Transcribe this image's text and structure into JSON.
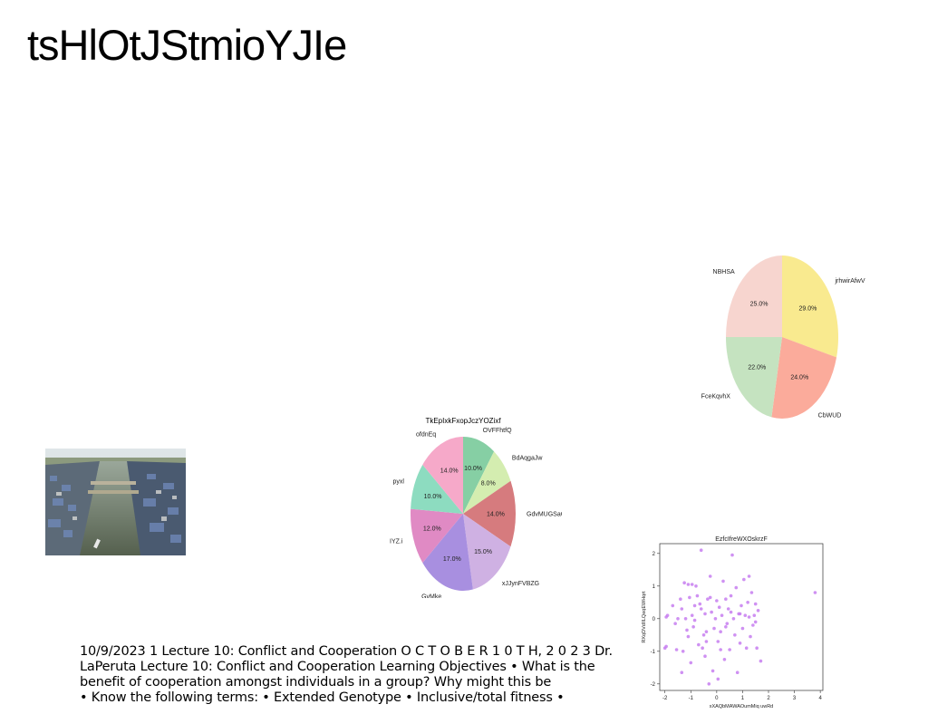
{
  "title": "tsHlOtJStmioYJIe",
  "photo": {
    "description_icon": "city-river-photo"
  },
  "body_lines": [
    "10/9/2023 1 Lecture 10: Conflict and Cooperation O C T O B E R 1 0 T H, 2 0 2 3 Dr.",
    "LaPeruta Lecture 10: Conflict and Cooperation Learning Objectives • What is the",
    "benefit of cooperation amongst individuals in a group? Why might this be",
    "• Know the following terms: • Extended Genotype • Inclusive/total fitness •"
  ],
  "chart_data": [
    {
      "type": "pie",
      "title": "",
      "slices": [
        {
          "label": "jrhwirAfwV",
          "value": 29.0,
          "pct_label": "29.0%",
          "color": "#f9ea8f"
        },
        {
          "label": "CbWUD",
          "value": 24.0,
          "pct_label": "24.0%",
          "color": "#fbab9b"
        },
        {
          "label": "FceKqvhX",
          "value": 22.0,
          "pct_label": "22.0%",
          "color": "#c5e3c0"
        },
        {
          "label": "NBHSA",
          "value": 25.0,
          "pct_label": "25.0%",
          "color": "#f7d5cf"
        }
      ]
    },
    {
      "type": "pie",
      "title": "TkEpIxkFxopJczYOZixf",
      "slices": [
        {
          "label": "OVFFhtfQ",
          "value": 10.0,
          "pct_label": "10.0%",
          "color": "#86cfa4"
        },
        {
          "label": "BdAqgaJw",
          "value": 8.0,
          "pct_label": "8.0%",
          "color": "#d4edb0"
        },
        {
          "label": "GdvMUGSaCu",
          "value": 14.0,
          "pct_label": "14.0%",
          "color": "#d67b7e"
        },
        {
          "label": "xJJynFVBZG",
          "value": 15.0,
          "pct_label": "15.0%",
          "color": "#cfb1e3"
        },
        {
          "label": "GvMke",
          "value": 17.0,
          "pct_label": "17.0%",
          "color": "#a88fe0"
        },
        {
          "label": "IYZ.i",
          "value": 12.0,
          "pct_label": "12.0%",
          "color": "#e08ac4"
        },
        {
          "label": "pyxl",
          "value": 10.0,
          "pct_label": "10.0%",
          "color": "#8ddcc0"
        },
        {
          "label": "ofdnEq",
          "value": 14.0,
          "pct_label": "14.0%",
          "color": "#f6a9c9"
        }
      ]
    },
    {
      "type": "scatter",
      "title": "EzfcIfreWXOskrzF",
      "xlabel": "xXAQbMAWAOumMiq uwRd",
      "ylabel": "RXqDVdIILQeqEWHqrt",
      "xlim": [
        -2.2,
        4.1
      ],
      "ylim": [
        -2.2,
        2.3
      ],
      "xticks": [
        -2,
        -1,
        0,
        1,
        2,
        3,
        4
      ],
      "yticks": [
        -2,
        -1,
        0,
        1,
        2
      ],
      "color": "#c77ef0",
      "points": [
        [
          -2.0,
          -0.9
        ],
        [
          -1.95,
          0.05
        ],
        [
          -1.9,
          0.1
        ],
        [
          -1.95,
          -0.85
        ],
        [
          -1.7,
          0.4
        ],
        [
          -1.6,
          -0.15
        ],
        [
          -1.5,
          0.0
        ],
        [
          -1.4,
          0.6
        ],
        [
          -1.35,
          0.3
        ],
        [
          -1.3,
          -1.0
        ],
        [
          -1.35,
          -1.65
        ],
        [
          -1.25,
          1.1
        ],
        [
          -1.2,
          0.0
        ],
        [
          -1.15,
          -0.35
        ],
        [
          -1.1,
          1.05
        ],
        [
          -1.05,
          0.65
        ],
        [
          -1.0,
          -1.35
        ],
        [
          -0.95,
          0.1
        ],
        [
          -0.9,
          -0.25
        ],
        [
          -0.85,
          0.4
        ],
        [
          -0.8,
          1.0
        ],
        [
          -0.75,
          0.7
        ],
        [
          -0.7,
          -0.8
        ],
        [
          -0.65,
          0.45
        ],
        [
          -0.6,
          2.1
        ],
        [
          -0.55,
          -0.9
        ],
        [
          -0.5,
          -0.5
        ],
        [
          -0.45,
          0.15
        ],
        [
          -0.4,
          -0.4
        ],
        [
          -0.35,
          0.6
        ],
        [
          -0.3,
          -2.0
        ],
        [
          -0.25,
          1.3
        ],
        [
          -0.2,
          0.2
        ],
        [
          -0.15,
          -1.6
        ],
        [
          -0.1,
          -0.3
        ],
        [
          -0.05,
          0.0
        ],
        [
          0.0,
          0.55
        ],
        [
          0.05,
          -0.7
        ],
        [
          0.1,
          0.35
        ],
        [
          0.15,
          -0.95
        ],
        [
          0.2,
          0.1
        ],
        [
          0.25,
          1.15
        ],
        [
          0.3,
          -1.25
        ],
        [
          0.35,
          0.6
        ],
        [
          0.4,
          -0.15
        ],
        [
          0.45,
          0.3
        ],
        [
          0.5,
          -0.95
        ],
        [
          0.55,
          0.7
        ],
        [
          0.6,
          1.95
        ],
        [
          0.65,
          0.0
        ],
        [
          0.7,
          -0.5
        ],
        [
          0.75,
          0.95
        ],
        [
          0.8,
          -1.65
        ],
        [
          0.85,
          0.15
        ],
        [
          0.9,
          -0.75
        ],
        [
          0.95,
          0.4
        ],
        [
          1.0,
          -0.3
        ],
        [
          1.05,
          1.2
        ],
        [
          1.1,
          0.1
        ],
        [
          1.15,
          -0.9
        ],
        [
          1.2,
          0.5
        ],
        [
          1.25,
          1.3
        ],
        [
          1.3,
          -0.55
        ],
        [
          1.35,
          0.8
        ],
        [
          1.4,
          -0.2
        ],
        [
          1.45,
          0.1
        ],
        [
          1.5,
          0.45
        ],
        [
          1.55,
          -0.9
        ],
        [
          1.6,
          0.25
        ],
        [
          1.7,
          -1.3
        ],
        [
          -1.55,
          -0.95
        ],
        [
          -0.45,
          -1.15
        ],
        [
          0.15,
          -0.4
        ],
        [
          1.5,
          -0.1
        ],
        [
          -1.1,
          -0.55
        ],
        [
          0.55,
          0.2
        ],
        [
          -0.85,
          -0.05
        ],
        [
          0.35,
          -0.25
        ],
        [
          -0.25,
          0.65
        ],
        [
          1.25,
          0.05
        ],
        [
          3.8,
          0.8
        ],
        [
          -0.4,
          -0.7
        ],
        [
          0.9,
          0.15
        ],
        [
          -0.95,
          1.05
        ],
        [
          0.05,
          -1.85
        ],
        [
          -0.6,
          0.3
        ]
      ]
    }
  ]
}
